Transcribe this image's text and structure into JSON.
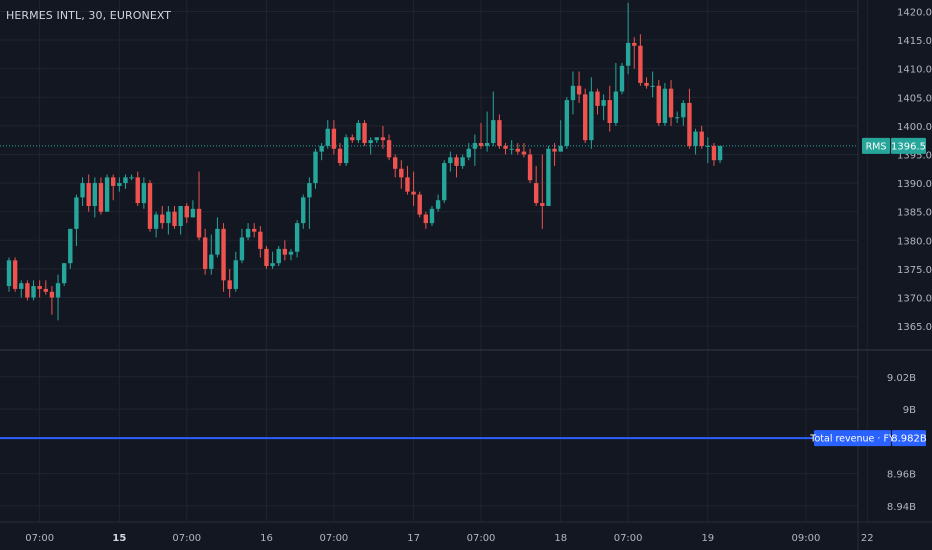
{
  "header": {
    "symbol_title": "HERMES INTL, 30, EURONEXT"
  },
  "price_badge": {
    "label": "RMS",
    "value": "1396.5"
  },
  "revenue_badge": {
    "label": "Total revenue · FY",
    "value": "8.982B"
  },
  "colors": {
    "background": "#131722",
    "grid": "#1f2430",
    "up": "#26a69a",
    "down": "#ef5350",
    "revenue_line": "#2962ff",
    "axis_text": "#b2b5be"
  },
  "chart_data": [
    {
      "type": "candlestick",
      "title": "HERMES INTL, 30, EURONEXT",
      "ylim": [
        1361,
        1422
      ],
      "y_ticks": [
        1365,
        1370,
        1375,
        1380,
        1385,
        1390,
        1395,
        1400,
        1405,
        1410,
        1415,
        1420
      ],
      "y_tick_labels": [
        "1365.0",
        "1370.0",
        "1375.0",
        "1380.0",
        "1385.0",
        "1390.0",
        "1395.0",
        "1400.0",
        "1405.0",
        "1410.0",
        "1415.0",
        "1420.0"
      ],
      "last_price": 1396.5,
      "candles": [
        [
          1372.0,
          1377.0,
          1371.0,
          1376.5
        ],
        [
          1376.5,
          1377.0,
          1371.0,
          1371.5
        ],
        [
          1371.5,
          1373.0,
          1370.0,
          1372.5
        ],
        [
          1372.5,
          1373.0,
          1369.5,
          1370.0
        ],
        [
          1370.0,
          1373.0,
          1369.5,
          1372.0
        ],
        [
          1372.0,
          1373.0,
          1370.0,
          1371.5
        ],
        [
          1371.5,
          1373.0,
          1370.5,
          1371.0
        ],
        [
          1371.0,
          1372.0,
          1367.0,
          1370.0
        ],
        [
          1370.0,
          1374.0,
          1366.0,
          1372.5
        ],
        [
          1372.5,
          1376.0,
          1372.0,
          1376.0
        ],
        [
          1376.0,
          1382.0,
          1375.0,
          1382.0
        ],
        [
          1382.0,
          1388.0,
          1379.0,
          1387.5
        ],
        [
          1387.5,
          1391.0,
          1386.0,
          1390.0
        ],
        [
          1390.0,
          1391.5,
          1385.0,
          1386.0
        ],
        [
          1386.0,
          1391.0,
          1384.0,
          1390.0
        ],
        [
          1390.0,
          1391.0,
          1384.5,
          1385.0
        ],
        [
          1385.0,
          1391.5,
          1385.0,
          1391.0
        ],
        [
          1391.0,
          1391.5,
          1387.0,
          1389.5
        ],
        [
          1389.5,
          1391.0,
          1388.5,
          1390.0
        ],
        [
          1390.0,
          1391.5,
          1389.0,
          1391.0
        ],
        [
          1391.0,
          1391.5,
          1390.5,
          1391.0
        ],
        [
          1391.0,
          1392.0,
          1386.0,
          1386.5
        ],
        [
          1386.5,
          1391.0,
          1385.5,
          1390.0
        ],
        [
          1390.0,
          1390.5,
          1381.5,
          1382.0
        ],
        [
          1382.0,
          1385.0,
          1380.5,
          1384.5
        ],
        [
          1384.5,
          1386.0,
          1382.0,
          1383.0
        ],
        [
          1383.0,
          1386.0,
          1381.0,
          1385.0
        ],
        [
          1385.0,
          1386.0,
          1382.0,
          1382.5
        ],
        [
          1382.5,
          1386.0,
          1381.0,
          1386.0
        ],
        [
          1386.0,
          1386.5,
          1383.0,
          1384.0
        ],
        [
          1384.0,
          1387.0,
          1384.0,
          1385.5
        ],
        [
          1385.5,
          1392.0,
          1380.0,
          1380.5
        ],
        [
          1380.5,
          1382.0,
          1374.0,
          1375.0
        ],
        [
          1375.0,
          1381.0,
          1374.0,
          1377.5
        ],
        [
          1377.5,
          1384.0,
          1377.0,
          1382.0
        ],
        [
          1382.0,
          1383.0,
          1371.0,
          1373.0
        ],
        [
          1373.0,
          1375.0,
          1370.0,
          1371.5
        ],
        [
          1371.5,
          1378.0,
          1371.0,
          1376.5
        ],
        [
          1376.5,
          1382.0,
          1376.0,
          1380.5
        ],
        [
          1380.5,
          1383.0,
          1380.0,
          1382.0
        ],
        [
          1382.0,
          1383.0,
          1380.5,
          1381.5
        ],
        [
          1381.5,
          1382.5,
          1377.0,
          1378.5
        ],
        [
          1378.5,
          1379.0,
          1375.0,
          1375.5
        ],
        [
          1375.5,
          1378.0,
          1375.0,
          1376.0
        ],
        [
          1376.0,
          1379.0,
          1375.5,
          1378.5
        ],
        [
          1378.5,
          1380.0,
          1376.5,
          1377.5
        ],
        [
          1377.5,
          1378.5,
          1376.5,
          1378.0
        ],
        [
          1378.0,
          1383.5,
          1377.0,
          1383.0
        ],
        [
          1383.0,
          1388.0,
          1382.0,
          1387.5
        ],
        [
          1387.5,
          1391.0,
          1382.0,
          1390.0
        ],
        [
          1390.0,
          1396.0,
          1389.0,
          1395.5
        ],
        [
          1395.5,
          1397.0,
          1394.0,
          1396.5
        ],
        [
          1396.5,
          1401.0,
          1396.0,
          1399.5
        ],
        [
          1399.5,
          1401.0,
          1395.0,
          1396.0
        ],
        [
          1396.0,
          1397.0,
          1393.0,
          1393.5
        ],
        [
          1393.5,
          1398.5,
          1393.0,
          1398.0
        ],
        [
          1398.0,
          1398.5,
          1397.0,
          1397.5
        ],
        [
          1397.5,
          1401.0,
          1397.0,
          1400.5
        ],
        [
          1400.5,
          1401.0,
          1396.5,
          1397.0
        ],
        [
          1397.0,
          1398.0,
          1395.0,
          1397.5
        ],
        [
          1397.5,
          1398.0,
          1397.0,
          1398.0
        ],
        [
          1398.0,
          1400.0,
          1396.0,
          1397.5
        ],
        [
          1397.5,
          1398.5,
          1394.0,
          1394.5
        ],
        [
          1394.5,
          1395.0,
          1391.0,
          1392.5
        ],
        [
          1392.5,
          1394.0,
          1389.0,
          1391.0
        ],
        [
          1391.0,
          1393.0,
          1388.0,
          1388.5
        ],
        [
          1388.5,
          1392.0,
          1386.0,
          1388.0
        ],
        [
          1388.0,
          1388.5,
          1384.0,
          1384.5
        ],
        [
          1384.5,
          1385.0,
          1382.0,
          1383.0
        ],
        [
          1383.0,
          1386.0,
          1382.5,
          1385.5
        ],
        [
          1385.5,
          1388.0,
          1385.0,
          1387.0
        ],
        [
          1387.0,
          1394.0,
          1386.5,
          1393.5
        ],
        [
          1393.5,
          1395.5,
          1392.0,
          1394.5
        ],
        [
          1394.5,
          1395.0,
          1391.0,
          1393.0
        ],
        [
          1393.0,
          1395.0,
          1392.5,
          1394.5
        ],
        [
          1394.5,
          1397.0,
          1394.0,
          1396.0
        ],
        [
          1396.0,
          1398.5,
          1393.0,
          1397.0
        ],
        [
          1397.0,
          1400.5,
          1396.0,
          1396.5
        ],
        [
          1396.5,
          1402.5,
          1395.5,
          1397.0
        ],
        [
          1397.0,
          1406.0,
          1396.5,
          1401.0
        ],
        [
          1401.0,
          1402.0,
          1396.0,
          1396.5
        ],
        [
          1396.5,
          1397.0,
          1395.0,
          1396.0
        ],
        [
          1396.0,
          1397.5,
          1395.0,
          1396.0
        ],
        [
          1396.0,
          1397.0,
          1395.0,
          1395.5
        ],
        [
          1395.5,
          1397.0,
          1394.5,
          1395.0
        ],
        [
          1395.0,
          1396.0,
          1390.0,
          1390.5
        ],
        [
          1390.0,
          1393.0,
          1386.0,
          1386.5
        ],
        [
          1386.5,
          1395.0,
          1382.0,
          1386.0
        ],
        [
          1386.0,
          1396.5,
          1386.0,
          1396.0
        ],
        [
          1396.0,
          1397.0,
          1393.0,
          1395.5
        ],
        [
          1395.5,
          1401.0,
          1395.5,
          1396.5
        ],
        [
          1396.5,
          1405.0,
          1396.0,
          1404.5
        ],
        [
          1404.5,
          1409.5,
          1402.0,
          1407.0
        ],
        [
          1407.0,
          1409.5,
          1404.0,
          1405.5
        ],
        [
          1405.5,
          1406.5,
          1397.0,
          1397.5
        ],
        [
          1397.5,
          1408.5,
          1396.0,
          1406.0
        ],
        [
          1406.0,
          1406.5,
          1402.0,
          1403.5
        ],
        [
          1403.5,
          1405.5,
          1401.0,
          1404.5
        ],
        [
          1404.5,
          1407.0,
          1399.0,
          1400.5
        ],
        [
          1400.5,
          1411.0,
          1400.0,
          1406.0
        ],
        [
          1406.0,
          1411.0,
          1405.5,
          1410.5
        ],
        [
          1410.5,
          1421.5,
          1409.0,
          1414.5
        ],
        [
          1414.5,
          1415.5,
          1410.0,
          1414.0
        ],
        [
          1414.0,
          1416.0,
          1407.0,
          1407.5
        ],
        [
          1407.5,
          1408.5,
          1406.5,
          1407.0
        ],
        [
          1407.0,
          1409.5,
          1405.0,
          1407.0
        ],
        [
          1407.0,
          1408.0,
          1400.0,
          1400.5
        ],
        [
          1400.5,
          1407.5,
          1400.0,
          1406.5
        ],
        [
          1406.5,
          1408.0,
          1400.0,
          1401.5
        ],
        [
          1401.5,
          1402.5,
          1400.5,
          1401.5
        ],
        [
          1401.5,
          1404.5,
          1400.0,
          1404.0
        ],
        [
          1404.0,
          1406.5,
          1396.0,
          1396.5
        ],
        [
          1396.5,
          1399.5,
          1395.0,
          1399.0
        ],
        [
          1399.0,
          1400.0,
          1396.0,
          1396.5
        ],
        [
          1396.5,
          1398.0,
          1393.5,
          1396.5
        ],
        [
          1396.5,
          1397.0,
          1393.0,
          1394.0
        ],
        [
          1394.0,
          1396.5,
          1393.5,
          1396.5
        ]
      ],
      "x_tick_labels": [
        {
          "index": 5,
          "label": "07:00",
          "bold": false
        },
        {
          "index": 18,
          "label": "15",
          "bold": true
        },
        {
          "index": 29,
          "label": "07:00",
          "bold": false
        },
        {
          "index": 42,
          "label": "16",
          "bold": false
        },
        {
          "index": 53,
          "label": "07:00",
          "bold": false
        },
        {
          "index": 66,
          "label": "17",
          "bold": false
        },
        {
          "index": 77,
          "label": "07:00",
          "bold": false
        },
        {
          "index": 90,
          "label": "18",
          "bold": false
        },
        {
          "index": 101,
          "label": "07:00",
          "bold": false
        },
        {
          "index": 114,
          "label": "19",
          "bold": false
        },
        {
          "index": 130,
          "label": "09:00",
          "bold": false
        },
        {
          "index": 140,
          "label": "22",
          "bold": false
        }
      ]
    },
    {
      "type": "line",
      "series": [
        {
          "name": "Total revenue · FY",
          "value": 8.982
        }
      ],
      "ylim": [
        8.93,
        9.036
      ],
      "y_ticks": [
        8.94,
        8.96,
        9.0,
        9.02
      ],
      "y_tick_labels": [
        "8.94B",
        "8.96B",
        "9B",
        "9.02B"
      ]
    }
  ]
}
